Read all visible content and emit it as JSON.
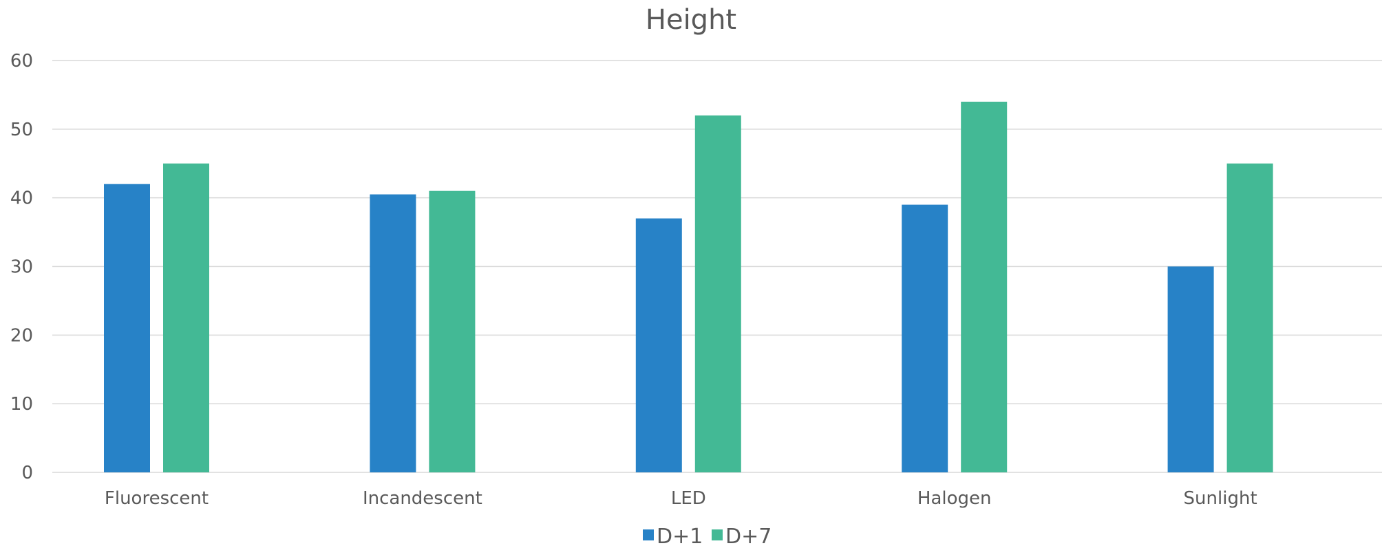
{
  "chart_data": {
    "type": "bar",
    "title": "Height",
    "xlabel": "",
    "ylabel": "",
    "categories": [
      "Fluorescent",
      "Incandescent",
      "LED",
      "Halogen",
      "Sunlight"
    ],
    "series": [
      {
        "name": "D+1",
        "values": [
          42,
          40.5,
          37,
          39,
          30
        ],
        "color": "#2782c7"
      },
      {
        "name": "D+7",
        "values": [
          45,
          41,
          52,
          54,
          45
        ],
        "color": "#43b995"
      }
    ],
    "ylim": [
      0,
      60
    ],
    "yticks": [
      "0",
      "10",
      "20",
      "30",
      "40",
      "50",
      "60"
    ],
    "grid": true,
    "legend": "bottom"
  }
}
